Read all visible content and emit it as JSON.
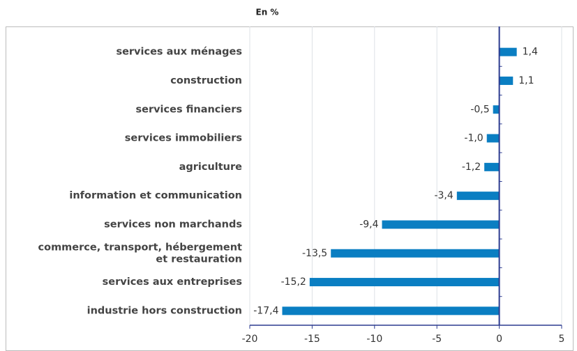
{
  "chart_data": {
    "type": "bar",
    "orientation": "horizontal",
    "title": "En %",
    "categories": [
      "services aux ménages",
      "construction",
      "services financiers",
      "services immobiliers",
      "agriculture",
      "information et communication",
      "services non marchands",
      "commerce, transport, hébergement\net restauration",
      "services aux entreprises",
      "industrie hors construction"
    ],
    "values": [
      1.4,
      1.1,
      -0.5,
      -1.0,
      -1.2,
      -3.4,
      -9.4,
      -13.5,
      -15.2,
      -17.4
    ],
    "value_labels": [
      "1,4",
      "1,1",
      "-0,5",
      "-1,0",
      "-1,2",
      "-3,4",
      "-9,4",
      "-13,5",
      "-15,2",
      "-17,4"
    ],
    "color": "#0a7ec2",
    "xlim": [
      -20,
      5
    ],
    "xticks": [
      -20,
      -15,
      -10,
      -5,
      0,
      5
    ],
    "grid": true
  }
}
